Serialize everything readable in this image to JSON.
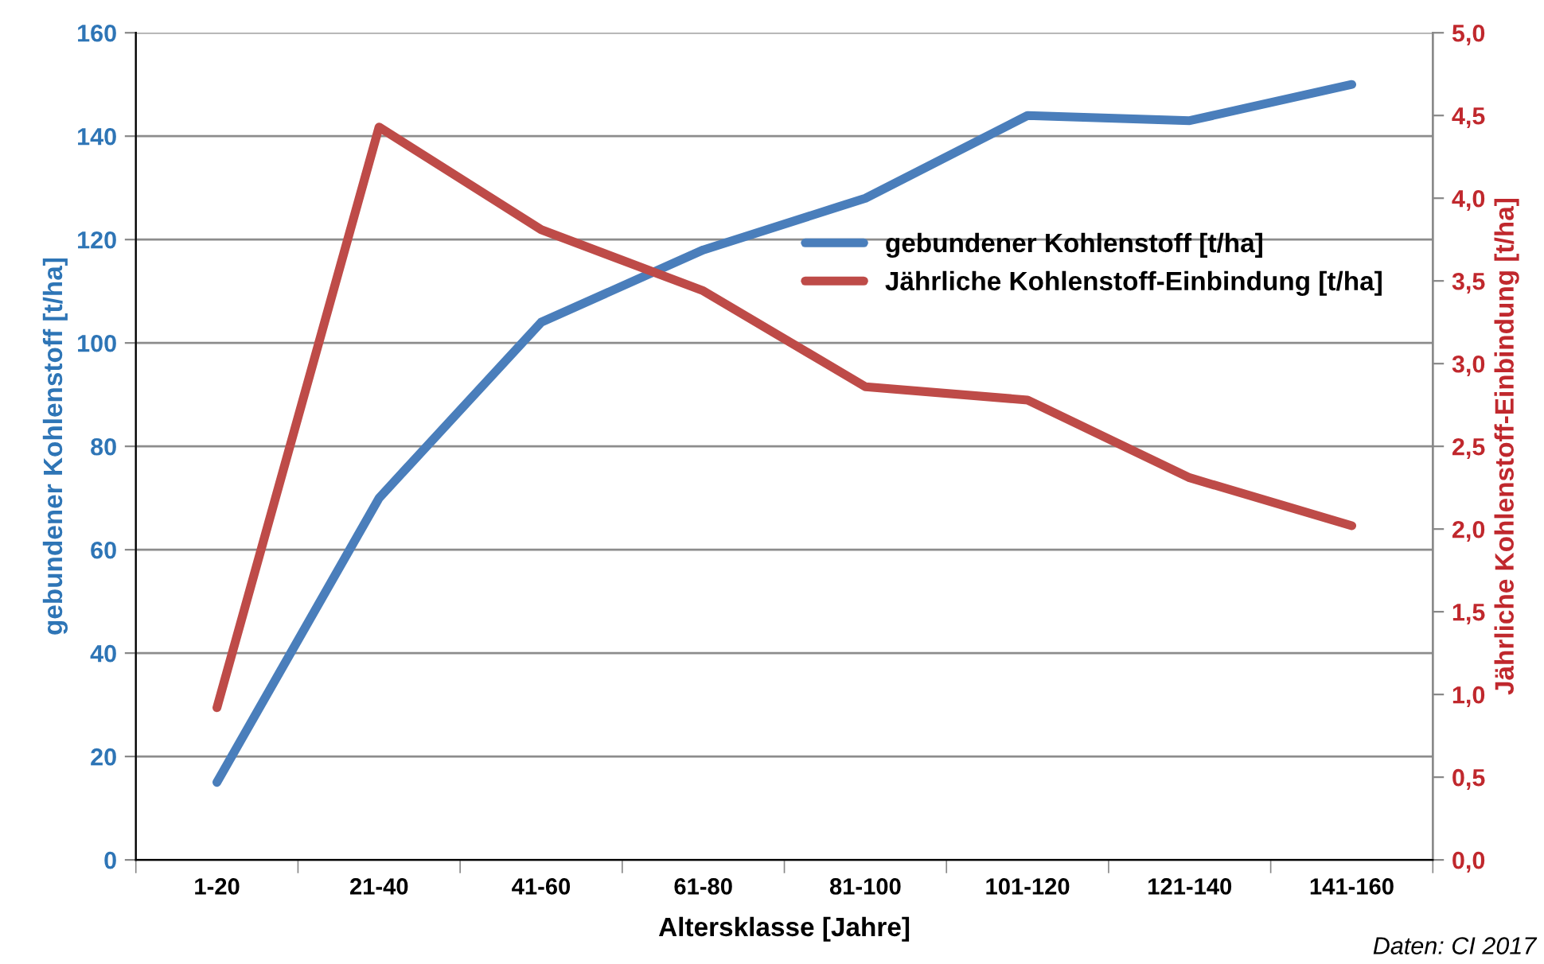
{
  "chart_data": {
    "type": "line",
    "xlabel": "Altersklasse [Jahre]",
    "ylabel": "gebundener Kohlenstoff [t/ha]",
    "y2label": "Jährliche Kohlenstoff-Einbindung [t/ha]",
    "categories": [
      "1-20",
      "21-40",
      "41-60",
      "61-80",
      "81-100",
      "101-120",
      "121-140",
      "141-160"
    ],
    "series": [
      {
        "name": "gebundener Kohlenstoff [t/ha]",
        "color": "#4a7ebb",
        "values": [
          15,
          70,
          104,
          118,
          128,
          144,
          143,
          150
        ]
      },
      {
        "name": "Jährliche Kohlenstoff-Einbindung [t/ha]",
        "color": "#be4b48",
        "axis": "y2",
        "values": [
          0.92,
          4.43,
          3.81,
          3.44,
          2.86,
          2.78,
          2.31,
          2.02
        ]
      }
    ],
    "ylim": [
      0,
      160
    ],
    "yticks": [
      0,
      20,
      40,
      60,
      80,
      100,
      120,
      140,
      160
    ],
    "y2lim": [
      0,
      5
    ],
    "y2ticks": [
      {
        "value": 0,
        "label": "0,0"
      },
      {
        "value": 0.5,
        "label": "0,5"
      },
      {
        "value": 1,
        "label": "1,0"
      },
      {
        "value": 1.5,
        "label": "1,5"
      },
      {
        "value": 2,
        "label": "2,0"
      },
      {
        "value": 2.5,
        "label": "2,5"
      },
      {
        "value": 3,
        "label": "3,0"
      },
      {
        "value": 3.5,
        "label": "3,5"
      },
      {
        "value": 4,
        "label": "4,0"
      },
      {
        "value": 4.5,
        "label": "4,5"
      },
      {
        "value": 5,
        "label": "5,0"
      }
    ],
    "grid": "y",
    "legend": "right",
    "marker": "none",
    "line_style": "solid",
    "annotations": [
      "Daten: CI 2017"
    ]
  }
}
